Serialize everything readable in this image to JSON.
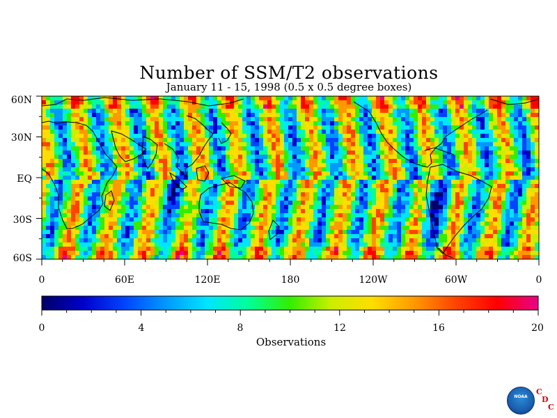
{
  "title": "Number of SSM/T2 observations",
  "subtitle": "January 11 - 15, 1998 (0.5 x 0.5 degree boxes)",
  "map": {
    "lat_labels": [
      "60N",
      "30N",
      "EQ",
      "30S",
      "60S"
    ],
    "lon_labels": [
      "0",
      "60E",
      "120E",
      "180",
      "120W",
      "60W",
      "0"
    ],
    "lat_range": [
      -60,
      60
    ],
    "lon_range": [
      0,
      360
    ],
    "field": "number of observations per 0.5 x 0.5 degree box"
  },
  "colorbar": {
    "title": "Observations",
    "tick_labels": [
      "0",
      "4",
      "8",
      "12",
      "16",
      "20"
    ],
    "range": [
      0,
      20
    ],
    "colors": [
      "#000066",
      "#0000cc",
      "#0044ff",
      "#0099ff",
      "#00e5ff",
      "#00ff99",
      "#33ee00",
      "#ccee00",
      "#ffdd00",
      "#ff9900",
      "#ff4400",
      "#ff0000",
      "#e8008a"
    ]
  },
  "logo": {
    "text": "NOAA",
    "letters": [
      "C",
      "D",
      "C"
    ]
  }
}
